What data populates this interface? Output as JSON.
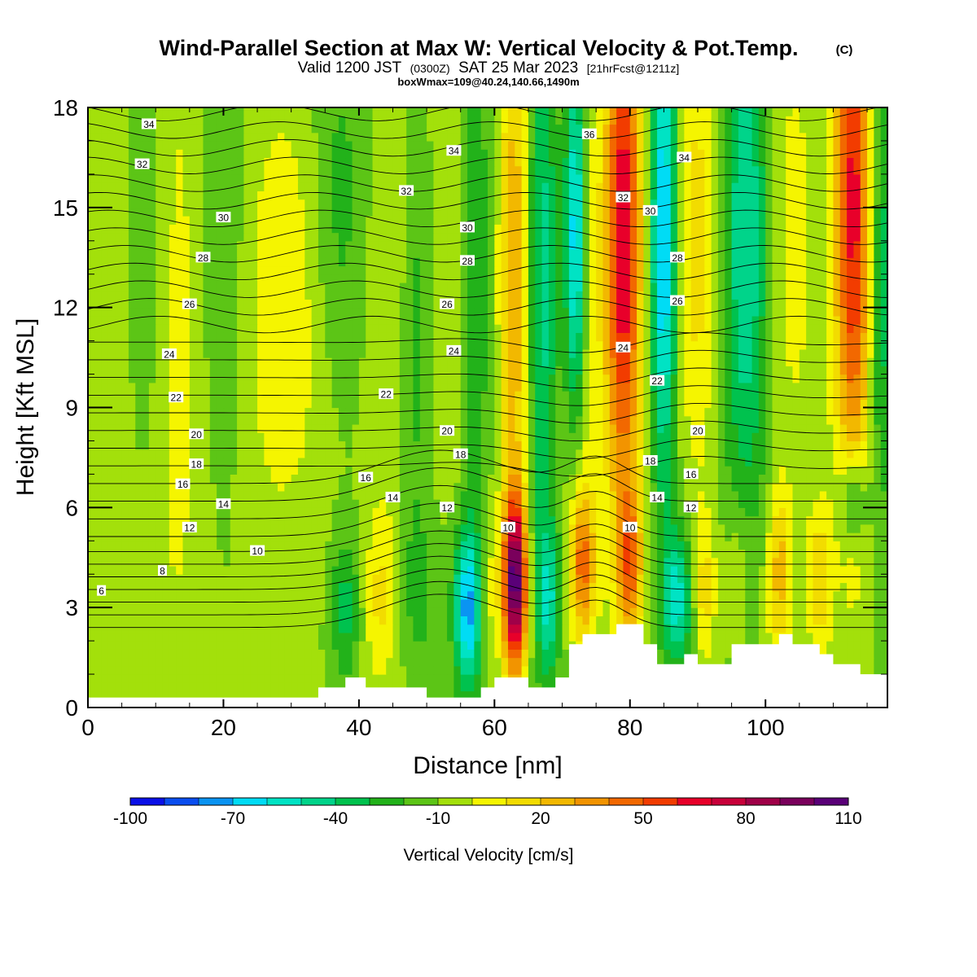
{
  "title": {
    "main": "Wind-Parallel Section at Max W: Vertical Velocity & Pot.Temp.",
    "mark": "(C)",
    "valid_prefix": "Valid 1200 JST",
    "valid_utc": "(0300Z)",
    "valid_date": "SAT 25 Mar 2023",
    "forecast": "[21hrFcst@1211z]",
    "box_info": "boxWmax=109@40.24,140.66,1490m"
  },
  "chart_data": {
    "type": "heatmap",
    "xlabel": "Distance [nm]",
    "ylabel": "Height [Kft MSL]",
    "xlim": [
      0,
      118
    ],
    "ylim": [
      0,
      18
    ],
    "x_ticks": [
      0,
      20,
      40,
      60,
      80,
      100
    ],
    "y_ticks": [
      0,
      3,
      6,
      9,
      12,
      15,
      18
    ],
    "colorbar": {
      "label": "Vertical Velocity [cm/s]",
      "levels": [
        -100,
        -90,
        -80,
        -70,
        -60,
        -50,
        -40,
        -30,
        -20,
        -10,
        0,
        10,
        20,
        30,
        40,
        50,
        60,
        70,
        80,
        90,
        100,
        110
      ],
      "tick_labels": [
        -100,
        -70,
        -40,
        -10,
        20,
        50,
        80,
        110
      ],
      "colors": [
        "#0a10e8",
        "#0a4ef0",
        "#0a94f2",
        "#00dcf5",
        "#00e3c4",
        "#00d48a",
        "#00c24e",
        "#22b21a",
        "#5cc516",
        "#a3e00b",
        "#f5f500",
        "#f2dc00",
        "#f2b800",
        "#f29400",
        "#f26800",
        "#f23c00",
        "#e8002a",
        "#c8003a",
        "#a00048",
        "#7a005c",
        "#5a0078"
      ]
    },
    "background_value": -10,
    "w_features": [
      {
        "x": 4,
        "z": 12,
        "sx": 2.5,
        "sz": 7,
        "w": 12
      },
      {
        "x": 13,
        "z": 11,
        "sx": 3,
        "sz": 9,
        "w": 14
      },
      {
        "x": 8,
        "z": 14,
        "sx": 2.5,
        "sz": 5,
        "w": -14
      },
      {
        "x": 20,
        "z": 14,
        "sx": 2.5,
        "sz": 5,
        "w": -12
      },
      {
        "x": 29,
        "z": 12,
        "sx": 5,
        "sz": 5,
        "w": 18
      },
      {
        "x": 37,
        "z": 15,
        "sx": 3,
        "sz": 4,
        "w": -16
      },
      {
        "x": 45,
        "z": 12,
        "sx": 3,
        "sz": 6,
        "w": 10
      },
      {
        "x": 48,
        "z": 11,
        "sx": 1.3,
        "sz": 5,
        "w": -18
      },
      {
        "x": 55,
        "z": 11,
        "sx": 1.5,
        "sz": 6,
        "w": 8
      },
      {
        "x": 57,
        "z": 13,
        "sx": 1.5,
        "sz": 6,
        "w": -22
      },
      {
        "x": 63,
        "z": 13,
        "sx": 1.6,
        "sz": 6,
        "w": 40
      },
      {
        "x": 67,
        "z": 13,
        "sx": 1.6,
        "sz": 7,
        "w": -35
      },
      {
        "x": 72,
        "z": 14,
        "sx": 1.1,
        "sz": 4,
        "w": -70
      },
      {
        "x": 73,
        "z": 12,
        "sx": 1.8,
        "sz": 6,
        "w": 20
      },
      {
        "x": 79,
        "z": 14,
        "sx": 1.9,
        "sz": 6,
        "w": 80
      },
      {
        "x": 85,
        "z": 14,
        "sx": 1.4,
        "sz": 5,
        "w": -65
      },
      {
        "x": 90,
        "z": 14,
        "sx": 2.5,
        "sz": 5,
        "w": 25
      },
      {
        "x": 97,
        "z": 14,
        "sx": 2.5,
        "sz": 6,
        "w": -40
      },
      {
        "x": 104,
        "z": 14,
        "sx": 2.5,
        "sz": 5,
        "w": 15
      },
      {
        "x": 113,
        "z": 15,
        "sx": 2,
        "sz": 6,
        "w": 75
      },
      {
        "x": 117,
        "z": 13,
        "sx": 1.5,
        "sz": 5,
        "w": -30
      },
      {
        "x": 38,
        "z": 3,
        "sx": 1.5,
        "sz": 1.5,
        "w": -25
      },
      {
        "x": 43,
        "z": 3.2,
        "sx": 1.5,
        "sz": 1.8,
        "w": 20
      },
      {
        "x": 49,
        "z": 3.5,
        "sx": 1.5,
        "sz": 1.5,
        "w": -15
      },
      {
        "x": 56,
        "z": 3,
        "sx": 1.4,
        "sz": 1.7,
        "w": -65
      },
      {
        "x": 59,
        "z": 3.5,
        "sx": 1.2,
        "sz": 1.5,
        "w": 15
      },
      {
        "x": 63,
        "z": 3.7,
        "sx": 1.2,
        "sz": 1.8,
        "w": 110
      },
      {
        "x": 68,
        "z": 3.2,
        "sx": 1.2,
        "sz": 1.5,
        "w": -35
      },
      {
        "x": 73,
        "z": 4.3,
        "sx": 1.3,
        "sz": 1.5,
        "w": 50
      },
      {
        "x": 80,
        "z": 4.3,
        "sx": 1.3,
        "sz": 1.5,
        "w": 45
      },
      {
        "x": 87,
        "z": 3.3,
        "sx": 1.6,
        "sz": 1.5,
        "w": -45
      },
      {
        "x": 91,
        "z": 3.5,
        "sx": 1.2,
        "sz": 1.5,
        "w": 25
      },
      {
        "x": 96,
        "z": 4,
        "sx": 1.4,
        "sz": 1.6,
        "w": 15
      },
      {
        "x": 102,
        "z": 4,
        "sx": 1.3,
        "sz": 1.8,
        "w": 35
      },
      {
        "x": 108,
        "z": 3.8,
        "sx": 1.3,
        "sz": 1.6,
        "w": 30
      },
      {
        "x": 113,
        "z": 6.3,
        "sx": 1.3,
        "sz": 1,
        "w": -35
      }
    ],
    "terrain": [
      [
        0,
        0.3
      ],
      [
        34,
        0.3
      ],
      [
        34,
        0.6
      ],
      [
        38,
        0.6
      ],
      [
        38,
        0.9
      ],
      [
        41,
        0.9
      ],
      [
        41,
        0.6
      ],
      [
        50,
        0.6
      ],
      [
        50,
        0.3
      ],
      [
        58,
        0.3
      ],
      [
        58,
        0.6
      ],
      [
        60,
        0.6
      ],
      [
        60,
        0.9
      ],
      [
        65,
        0.9
      ],
      [
        65,
        0.6
      ],
      [
        69,
        0.6
      ],
      [
        69,
        0.9
      ],
      [
        71,
        0.9
      ],
      [
        71,
        1.9
      ],
      [
        73,
        1.9
      ],
      [
        73,
        2.2
      ],
      [
        78,
        2.2
      ],
      [
        78,
        2.5
      ],
      [
        82,
        2.5
      ],
      [
        82,
        1.9
      ],
      [
        84,
        1.9
      ],
      [
        84,
        1.3
      ],
      [
        88,
        1.3
      ],
      [
        88,
        1.6
      ],
      [
        90,
        1.6
      ],
      [
        90,
        1.3
      ],
      [
        95,
        1.3
      ],
      [
        95,
        1.9
      ],
      [
        102,
        1.9
      ],
      [
        102,
        2.2
      ],
      [
        104,
        2.2
      ],
      [
        104,
        1.9
      ],
      [
        108,
        1.9
      ],
      [
        108,
        1.6
      ],
      [
        110,
        1.6
      ],
      [
        110,
        1.3
      ],
      [
        114,
        1.3
      ],
      [
        114,
        1.0
      ],
      [
        116,
        1.0
      ],
      [
        116,
        1.0
      ],
      [
        118,
        1.0
      ]
    ],
    "theta_labels": [
      {
        "x": 2,
        "z": 3.5,
        "t": "6"
      },
      {
        "x": 11,
        "z": 4.1,
        "t": "8"
      },
      {
        "x": 25,
        "z": 4.7,
        "t": "10"
      },
      {
        "x": 15,
        "z": 5.4,
        "t": "12"
      },
      {
        "x": 20,
        "z": 6.1,
        "t": "14"
      },
      {
        "x": 14,
        "z": 6.7,
        "t": "16"
      },
      {
        "x": 16,
        "z": 7.3,
        "t": "18"
      },
      {
        "x": 16,
        "z": 8.2,
        "t": "20"
      },
      {
        "x": 13,
        "z": 9.3,
        "t": "22"
      },
      {
        "x": 12,
        "z": 10.6,
        "t": "24"
      },
      {
        "x": 15,
        "z": 12.1,
        "t": "26"
      },
      {
        "x": 17,
        "z": 13.5,
        "t": "28"
      },
      {
        "x": 20,
        "z": 14.7,
        "t": "30"
      },
      {
        "x": 8,
        "z": 16.3,
        "t": "32"
      },
      {
        "x": 9,
        "z": 17.5,
        "t": "34"
      },
      {
        "x": 44,
        "z": 9.4,
        "t": "22"
      },
      {
        "x": 41,
        "z": 6.9,
        "t": "16"
      },
      {
        "x": 45,
        "z": 6.3,
        "t": "14"
      },
      {
        "x": 53,
        "z": 6.0,
        "t": "12"
      },
      {
        "x": 62,
        "z": 5.4,
        "t": "10"
      },
      {
        "x": 53,
        "z": 8.3,
        "t": "20"
      },
      {
        "x": 55,
        "z": 7.6,
        "t": "18"
      },
      {
        "x": 54,
        "z": 10.7,
        "t": "24"
      },
      {
        "x": 53,
        "z": 12.1,
        "t": "26"
      },
      {
        "x": 56,
        "z": 13.4,
        "t": "28"
      },
      {
        "x": 56,
        "z": 14.4,
        "t": "30"
      },
      {
        "x": 47,
        "z": 15.5,
        "t": "32"
      },
      {
        "x": 54,
        "z": 16.7,
        "t": "34"
      },
      {
        "x": 74,
        "z": 17.2,
        "t": "36"
      },
      {
        "x": 79,
        "z": 15.3,
        "t": "32"
      },
      {
        "x": 83,
        "z": 14.9,
        "t": "30"
      },
      {
        "x": 88,
        "z": 16.5,
        "t": "34"
      },
      {
        "x": 87,
        "z": 13.5,
        "t": "28"
      },
      {
        "x": 87,
        "z": 12.2,
        "t": "26"
      },
      {
        "x": 79,
        "z": 10.8,
        "t": "24"
      },
      {
        "x": 84,
        "z": 9.8,
        "t": "22"
      },
      {
        "x": 90,
        "z": 8.3,
        "t": "20"
      },
      {
        "x": 83,
        "z": 7.4,
        "t": "18"
      },
      {
        "x": 89,
        "z": 7.0,
        "t": "16"
      },
      {
        "x": 84,
        "z": 6.3,
        "t": "14"
      },
      {
        "x": 89,
        "z": 6.0,
        "t": "12"
      },
      {
        "x": 80,
        "z": 5.4,
        "t": "10"
      }
    ]
  }
}
